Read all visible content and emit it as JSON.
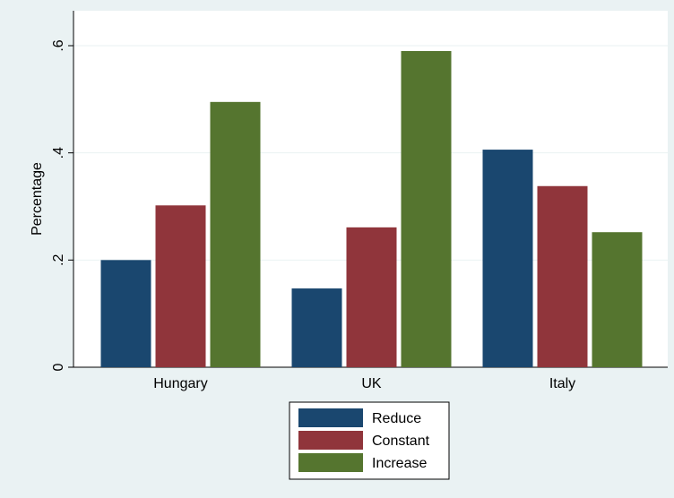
{
  "chart_data": {
    "type": "bar",
    "y_label": "Percentage",
    "categories": [
      "Hungary",
      "UK",
      "Italy"
    ],
    "series": [
      {
        "name": "Reduce",
        "color": "#1a476f",
        "values": [
          0.2,
          0.147,
          0.406
        ]
      },
      {
        "name": "Constant",
        "color": "#90353b",
        "values": [
          0.302,
          0.261,
          0.338
        ]
      },
      {
        "name": "Increase",
        "color": "#55752f",
        "values": [
          0.495,
          0.59,
          0.252
        ]
      }
    ],
    "ylim": [
      0,
      0.6
    ],
    "yticks": [
      0,
      {
        "value": 0.2,
        "label": ".2"
      },
      {
        "value": 0.4,
        "label": ".4"
      },
      {
        "value": 0.6,
        "label": ".6"
      }
    ],
    "grid": true,
    "legend": "bottom"
  }
}
